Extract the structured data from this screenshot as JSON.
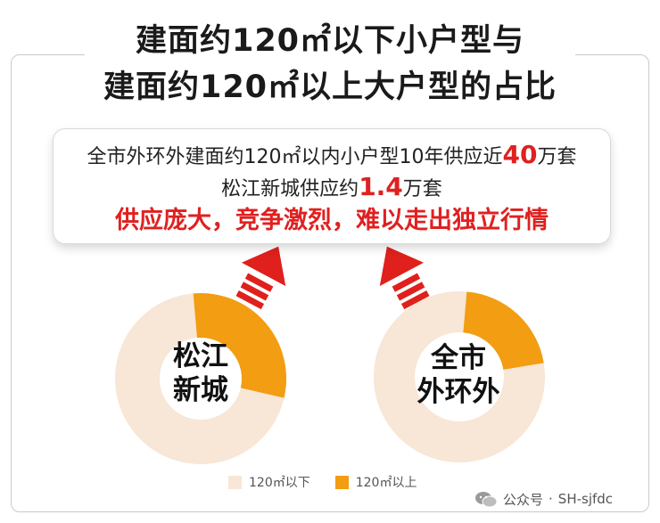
{
  "title": {
    "line1": "建面约120㎡以下小户型与",
    "line2": "建面约120㎡以上大户型的占比"
  },
  "info": {
    "line1_pre": "全市外环外建面约120㎡以内小户型10年供应近",
    "line1_num": "40",
    "line1_post": "万套",
    "line2_pre": "松江新城供应约",
    "line2_num": "1.4",
    "line2_post": "万套",
    "line3": "供应庞大，竞争激烈，难以走出独立行情"
  },
  "colors": {
    "small_unit": "#f8e6d6",
    "large_unit": "#f29d12",
    "arrow_red": "#e0201c",
    "emphasis_red": "#e02020"
  },
  "chart_data": [
    {
      "type": "pie",
      "center_label_lines": [
        "松江",
        "新城"
      ],
      "categories": [
        "120㎡以下",
        "120㎡以上"
      ],
      "values": [
        70,
        30
      ]
    },
    {
      "type": "pie",
      "center_label_lines": [
        "全市",
        "外环外"
      ],
      "categories": [
        "120㎡以下",
        "120㎡以上"
      ],
      "values": [
        79,
        21
      ]
    }
  ],
  "legend": {
    "items": [
      {
        "label": "120㎡以下",
        "color": "#f8e6d6"
      },
      {
        "label": "120㎡以上",
        "color": "#f29d12"
      }
    ]
  },
  "watermark": {
    "account": "公众号",
    "separator": "·",
    "handle": "SH-sjfdc"
  }
}
